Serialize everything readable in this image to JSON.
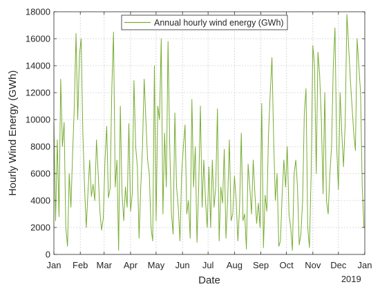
{
  "chart_data": {
    "type": "line",
    "title": "",
    "xlabel": "Date",
    "ylabel": "Hourly Wind Energy (GWh)",
    "year_label": "2019",
    "x_axis_kind": "date",
    "xlim": [
      "2019-01-01",
      "2020-01-01"
    ],
    "ylim": [
      0,
      18000
    ],
    "y_ticks": [
      0,
      2000,
      4000,
      6000,
      8000,
      10000,
      12000,
      14000,
      16000,
      18000
    ],
    "x_ticks": [
      {
        "date": "2019-01-01",
        "label": "Jan"
      },
      {
        "date": "2019-02-01",
        "label": "Feb"
      },
      {
        "date": "2019-03-01",
        "label": "Mar"
      },
      {
        "date": "2019-04-01",
        "label": "Apr"
      },
      {
        "date": "2019-05-01",
        "label": "May"
      },
      {
        "date": "2019-06-01",
        "label": "Jun"
      },
      {
        "date": "2019-07-01",
        "label": "Jul"
      },
      {
        "date": "2019-08-01",
        "label": "Aug"
      },
      {
        "date": "2019-09-01",
        "label": "Sep"
      },
      {
        "date": "2019-10-01",
        "label": "Oct"
      },
      {
        "date": "2019-11-01",
        "label": "Nov"
      },
      {
        "date": "2019-12-01",
        "label": "Dec"
      },
      {
        "date": "2020-01-01",
        "label": "Jan"
      }
    ],
    "grid": true,
    "legend_position": "top-center",
    "series": [
      {
        "name": "Annual hourly wind energy (GWh)",
        "color": "#77ac30",
        "x": [
          "2019-01-01",
          "2019-01-03",
          "2019-01-05",
          "2019-01-07",
          "2019-01-09",
          "2019-01-11",
          "2019-01-13",
          "2019-01-15",
          "2019-01-17",
          "2019-01-19",
          "2019-01-21",
          "2019-01-23",
          "2019-01-25",
          "2019-01-27",
          "2019-01-29",
          "2019-01-31",
          "2019-02-02",
          "2019-02-04",
          "2019-02-06",
          "2019-02-08",
          "2019-02-10",
          "2019-02-12",
          "2019-02-14",
          "2019-02-16",
          "2019-02-18",
          "2019-02-20",
          "2019-02-22",
          "2019-02-24",
          "2019-02-26",
          "2019-02-28",
          "2019-03-02",
          "2019-03-04",
          "2019-03-06",
          "2019-03-08",
          "2019-03-10",
          "2019-03-12",
          "2019-03-14",
          "2019-03-16",
          "2019-03-18",
          "2019-03-20",
          "2019-03-22",
          "2019-03-24",
          "2019-03-26",
          "2019-03-28",
          "2019-03-30",
          "2019-04-01",
          "2019-04-03",
          "2019-04-05",
          "2019-04-07",
          "2019-04-09",
          "2019-04-11",
          "2019-04-13",
          "2019-04-15",
          "2019-04-17",
          "2019-04-19",
          "2019-04-21",
          "2019-04-23",
          "2019-04-25",
          "2019-04-27",
          "2019-04-29",
          "2019-05-01",
          "2019-05-03",
          "2019-05-05",
          "2019-05-07",
          "2019-05-09",
          "2019-05-11",
          "2019-05-13",
          "2019-05-15",
          "2019-05-17",
          "2019-05-19",
          "2019-05-21",
          "2019-05-23",
          "2019-05-25",
          "2019-05-27",
          "2019-05-29",
          "2019-05-31",
          "2019-06-02",
          "2019-06-04",
          "2019-06-06",
          "2019-06-08",
          "2019-06-10",
          "2019-06-12",
          "2019-06-14",
          "2019-06-16",
          "2019-06-18",
          "2019-06-20",
          "2019-06-22",
          "2019-06-24",
          "2019-06-26",
          "2019-06-28",
          "2019-06-30",
          "2019-07-02",
          "2019-07-04",
          "2019-07-06",
          "2019-07-08",
          "2019-07-10",
          "2019-07-12",
          "2019-07-14",
          "2019-07-16",
          "2019-07-18",
          "2019-07-20",
          "2019-07-22",
          "2019-07-24",
          "2019-07-26",
          "2019-07-28",
          "2019-07-30",
          "2019-08-01",
          "2019-08-03",
          "2019-08-05",
          "2019-08-07",
          "2019-08-09",
          "2019-08-11",
          "2019-08-13",
          "2019-08-15",
          "2019-08-17",
          "2019-08-19",
          "2019-08-21",
          "2019-08-23",
          "2019-08-25",
          "2019-08-27",
          "2019-08-29",
          "2019-08-31",
          "2019-09-02",
          "2019-09-04",
          "2019-09-06",
          "2019-09-08",
          "2019-09-10",
          "2019-09-12",
          "2019-09-14",
          "2019-09-16",
          "2019-09-18",
          "2019-09-20",
          "2019-09-22",
          "2019-09-24",
          "2019-09-26",
          "2019-09-28",
          "2019-09-30",
          "2019-10-02",
          "2019-10-04",
          "2019-10-06",
          "2019-10-08",
          "2019-10-10",
          "2019-10-12",
          "2019-10-14",
          "2019-10-16",
          "2019-10-18",
          "2019-10-20",
          "2019-10-22",
          "2019-10-24",
          "2019-10-26",
          "2019-10-28",
          "2019-10-30",
          "2019-11-01",
          "2019-11-03",
          "2019-11-05",
          "2019-11-07",
          "2019-11-09",
          "2019-11-11",
          "2019-11-13",
          "2019-11-15",
          "2019-11-17",
          "2019-11-19",
          "2019-11-21",
          "2019-11-23",
          "2019-11-25",
          "2019-11-27",
          "2019-11-29",
          "2019-12-01",
          "2019-12-03",
          "2019-12-05",
          "2019-12-07",
          "2019-12-09",
          "2019-12-11",
          "2019-12-13",
          "2019-12-15",
          "2019-12-17",
          "2019-12-19",
          "2019-12-21",
          "2019-12-23",
          "2019-12-25",
          "2019-12-27",
          "2019-12-29",
          "2019-12-31"
        ],
        "y": [
          9800,
          2500,
          8500,
          2800,
          13000,
          8000,
          9800,
          2000,
          600,
          6000,
          3500,
          7500,
          11000,
          16400,
          10000,
          14800,
          16000,
          9000,
          5000,
          2000,
          4600,
          7000,
          4300,
          5200,
          4000,
          8500,
          6000,
          3200,
          1800,
          2700,
          7000,
          9500,
          4200,
          4900,
          12300,
          16500,
          5000,
          7000,
          300,
          11000,
          4500,
          2500,
          5000,
          3500,
          9700,
          3200,
          4500,
          12900,
          8000,
          6500,
          1200,
          5000,
          8000,
          13000,
          10000,
          7000,
          6000,
          2000,
          1000,
          14000,
          2500,
          11000,
          10000,
          16000,
          3000,
          9000,
          5000,
          15800,
          8000,
          3000,
          1500,
          10500,
          5000,
          3500,
          1000,
          6000,
          8000,
          9600,
          3000,
          4000,
          1200,
          11500,
          5000,
          8000,
          900,
          5000,
          11000,
          3500,
          7000,
          4000,
          2000,
          6500,
          2000,
          7000,
          3500,
          5000,
          10800,
          1000,
          5000,
          3800,
          7800,
          1200,
          4000,
          8500,
          2500,
          3000,
          5800,
          4000,
          1000,
          3500,
          9000,
          2500,
          3000,
          400,
          6700,
          5000,
          3000,
          7000,
          4500,
          2300,
          3800,
          2000,
          11200,
          500,
          4400,
          3200,
          9000,
          12000,
          14600,
          8500,
          4000,
          6000,
          600,
          1000,
          4500,
          7000,
          5000,
          8000,
          3000,
          2000,
          300,
          6000,
          7000,
          5000,
          700,
          1500,
          4000,
          10500,
          12300,
          2000,
          500,
          6000,
          15500,
          14000,
          6000,
          15000,
          13300,
          10000,
          4500,
          12000,
          4000,
          3000,
          6000,
          8000,
          14000,
          16800,
          8000,
          4800,
          12000,
          9000,
          6500,
          9800,
          17800,
          15500,
          13000,
          11000,
          9000,
          7700,
          16000,
          14000,
          12000,
          5000,
          2000
        ]
      }
    ]
  }
}
